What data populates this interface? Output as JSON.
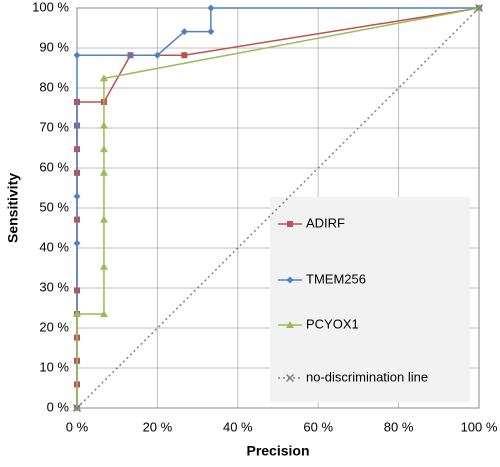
{
  "chart_data": {
    "type": "line",
    "x_label": "Precision",
    "y_label": "Sensitivity",
    "xlim": [
      0,
      100
    ],
    "ylim": [
      0,
      100
    ],
    "xticks": [
      {
        "value": 0,
        "label": "0 %"
      },
      {
        "value": 20,
        "label": "20 %"
      },
      {
        "value": 40,
        "label": "40 %"
      },
      {
        "value": 60,
        "label": "60 %"
      },
      {
        "value": 80,
        "label": "80 %"
      },
      {
        "value": 100,
        "label": "100 %"
      }
    ],
    "yticks": [
      {
        "value": 0,
        "label": "0 %"
      },
      {
        "value": 10,
        "label": "10 %"
      },
      {
        "value": 20,
        "label": "20 %"
      },
      {
        "value": 30,
        "label": "30 %"
      },
      {
        "value": 40,
        "label": "40 %"
      },
      {
        "value": 50,
        "label": "50 %"
      },
      {
        "value": 60,
        "label": "60 %"
      },
      {
        "value": 70,
        "label": "70 %"
      },
      {
        "value": 80,
        "label": "80 %"
      },
      {
        "value": 90,
        "label": "90 %"
      },
      {
        "value": 100,
        "label": "100 %"
      }
    ],
    "grid": true,
    "series": [
      {
        "name": "ADIRF",
        "color": "#c0504d",
        "marker": "square",
        "line_style": "solid",
        "x": [
          0,
          0,
          0,
          0,
          0,
          0,
          0,
          0,
          0,
          0,
          0,
          6.7,
          13.3,
          26.7,
          100
        ],
        "values": [
          0,
          5.9,
          11.8,
          17.6,
          23.5,
          29.4,
          47.1,
          58.8,
          64.7,
          70.6,
          76.5,
          76.5,
          88.2,
          88.2,
          100
        ]
      },
      {
        "name": "TMEM256",
        "color": "#4f81bd",
        "marker": "diamond",
        "line_style": "solid",
        "x": [
          0,
          0,
          0,
          0,
          0,
          0,
          13.3,
          20,
          26.7,
          33.3,
          33.3,
          100
        ],
        "values": [
          0,
          23.5,
          41.2,
          52.9,
          70.6,
          88.2,
          88.2,
          88.2,
          94.1,
          94.1,
          100,
          100
        ]
      },
      {
        "name": "PCYOX1",
        "color": "#9bbb59",
        "marker": "triangle",
        "line_style": "solid",
        "x": [
          0,
          0,
          6.7,
          6.7,
          6.7,
          6.7,
          6.7,
          6.7,
          6.7,
          100
        ],
        "values": [
          0,
          23.5,
          23.5,
          35.3,
          47.1,
          58.8,
          64.7,
          70.6,
          82.4,
          100
        ]
      },
      {
        "name": "no-discrimination line",
        "color": "#808080",
        "marker": "cross",
        "line_style": "dotted",
        "x": [
          0,
          100
        ],
        "values": [
          0,
          100
        ]
      }
    ]
  }
}
